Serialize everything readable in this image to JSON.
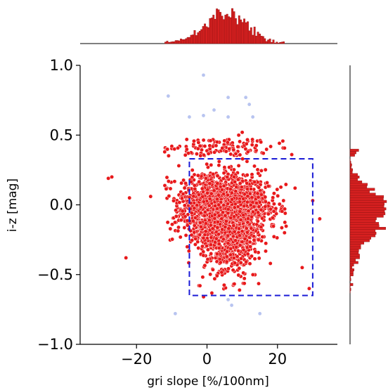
{
  "chart_data": {
    "type": "scatter",
    "title": "",
    "xlabel": "gri slope [%/100nm]",
    "ylabel": "i-z [mag]",
    "xlim": [
      -36,
      37
    ],
    "ylim": [
      -1.0,
      1.0
    ],
    "xticks": [
      -20,
      0,
      20
    ],
    "xtick_labels": [
      "−20",
      "0",
      "20"
    ],
    "yticks": [
      1.0,
      0.5,
      0.0,
      -0.5,
      -1.0
    ],
    "ytick_labels": [
      "1.0",
      "0.5",
      "0.0",
      "−0.5",
      "−1.0"
    ],
    "grid": false,
    "legend": "none",
    "colors": {
      "main_points": "#e8191b",
      "main_edge": "#ffffff",
      "outlier_points": "#b8c4f0",
      "selection_box": "#1a1ad6",
      "histogram": "#d62020"
    },
    "selection_box": {
      "x": [
        -5,
        30
      ],
      "y": [
        -0.65,
        0.33
      ]
    },
    "main_cloud": {
      "x_center": 5,
      "x_half_range": 10,
      "y_center": -0.02,
      "y_half_range": 0.18,
      "approx_count": 3000
    },
    "faint_outliers": [
      {
        "x": -1,
        "y": 0.93
      },
      {
        "x": -11,
        "y": 0.78
      },
      {
        "x": 6,
        "y": 0.77
      },
      {
        "x": 11,
        "y": 0.77
      },
      {
        "x": 12,
        "y": 0.72
      },
      {
        "x": 2,
        "y": 0.68
      },
      {
        "x": -5,
        "y": 0.63
      },
      {
        "x": -1,
        "y": 0.64
      },
      {
        "x": 6,
        "y": 0.63
      },
      {
        "x": 13,
        "y": 0.63
      },
      {
        "x": -9,
        "y": -0.78
      },
      {
        "x": 15,
        "y": -0.78
      },
      {
        "x": 7,
        "y": -0.72
      },
      {
        "x": 6,
        "y": -0.68
      }
    ],
    "outliers": [
      {
        "x": -28,
        "y": 0.19
      },
      {
        "x": -27,
        "y": 0.2
      },
      {
        "x": -22,
        "y": 0.05
      },
      {
        "x": -23,
        "y": -0.38
      },
      {
        "x": -16,
        "y": 0.06
      },
      {
        "x": -10,
        "y": 0.42
      },
      {
        "x": -12,
        "y": 0.38
      },
      {
        "x": -8,
        "y": 0.28
      },
      {
        "x": 32,
        "y": -0.1
      },
      {
        "x": 30,
        "y": 0.03
      },
      {
        "x": 27,
        "y": -0.45
      },
      {
        "x": 29,
        "y": -0.6
      },
      {
        "x": 25,
        "y": 0.12
      },
      {
        "x": 22,
        "y": -0.2
      },
      {
        "x": 10,
        "y": 0.52
      },
      {
        "x": 9,
        "y": 0.5
      },
      {
        "x": 1,
        "y": 0.46
      },
      {
        "x": 16,
        "y": 0.37
      },
      {
        "x": -2,
        "y": -0.58
      },
      {
        "x": 18,
        "y": -0.42
      }
    ]
  }
}
